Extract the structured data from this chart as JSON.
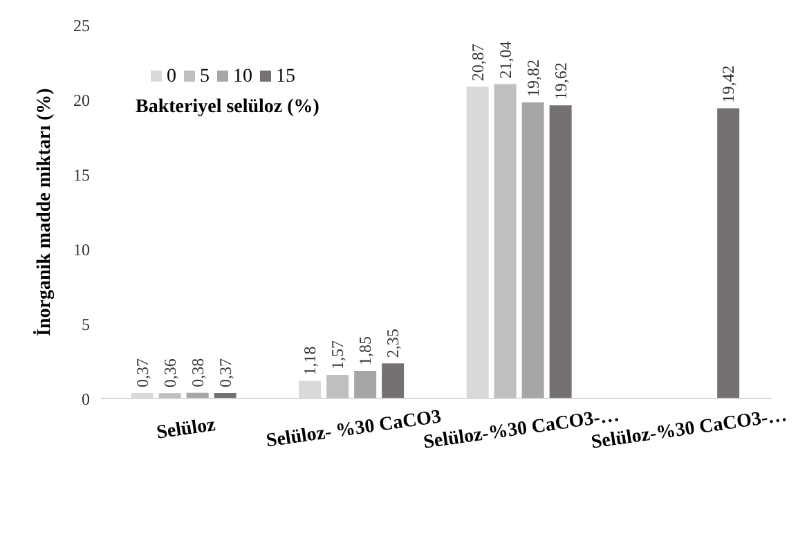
{
  "chart_data": {
    "type": "bar",
    "ylabel": "İnorganik madde miktarı (%)",
    "legend_title": "Bakteriyel selüloz (%)",
    "categories": [
      "Selüloz",
      "Selüloz- %30 CaCO3",
      "Selüloz-%30 CaCO3-…",
      "Selüloz-%30 CaCO3-…"
    ],
    "series": [
      {
        "name": "0",
        "color": "#d9d9d9",
        "values": [
          0.37,
          1.18,
          20.87,
          null
        ],
        "value_labels": [
          "0,37",
          "1,18",
          "20,87",
          null
        ]
      },
      {
        "name": "5",
        "color": "#bfbfbf",
        "values": [
          0.36,
          1.57,
          21.04,
          null
        ],
        "value_labels": [
          "0,36",
          "1,57",
          "21,04",
          null
        ]
      },
      {
        "name": "10",
        "color": "#a6a6a6",
        "values": [
          0.38,
          1.85,
          19.82,
          null
        ],
        "value_labels": [
          "0,38",
          "1,85",
          "19,82",
          null
        ]
      },
      {
        "name": "15",
        "color": "#767171",
        "values": [
          0.37,
          2.35,
          19.62,
          19.42
        ],
        "value_labels": [
          "0,37",
          "2,35",
          "19,62",
          "19,42"
        ]
      }
    ],
    "ylim": [
      0,
      25
    ],
    "yticks": [
      0,
      5,
      10,
      15,
      20,
      25
    ],
    "grid": false,
    "legend": "top left"
  }
}
